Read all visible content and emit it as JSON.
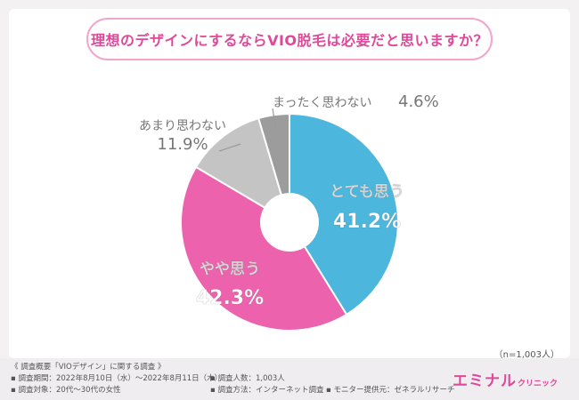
{
  "question": "理想のデザインにするならVIO脱毛は必要だと思いますか？",
  "sample_note": "（n=1,003人）",
  "footer": {
    "summary_title": "《 調査概要「VIOデザイン」に関する調査 》",
    "period": "▪ 調査期間：2022年8月10日（水）～2022年8月11日（木）",
    "target": "▪ 調査対象：20代～30代の女性",
    "respondents": "▪ 調査人数：1,003人",
    "method": "▪ 調査方法：インターネット調査",
    "provider": "▪ モニター提供元：ゼネラルリサーチ"
  },
  "logo": {
    "main": "エミナル",
    "sub": "クリニック"
  },
  "chart_data": {
    "type": "pie",
    "donut": true,
    "categories": [
      "とても思う",
      "やや思う",
      "あまり思わない",
      "まったく思わない"
    ],
    "values": [
      41.2,
      42.3,
      11.9,
      4.6
    ],
    "value_labels": [
      "41.2%",
      "42.3%",
      "11.9%",
      "4.6%"
    ],
    "colors": [
      "#4cb6dc",
      "#ec62ac",
      "#c4c4c4",
      "#9c9c9c"
    ],
    "start_angle_deg": 0,
    "direction": "clockwise"
  }
}
